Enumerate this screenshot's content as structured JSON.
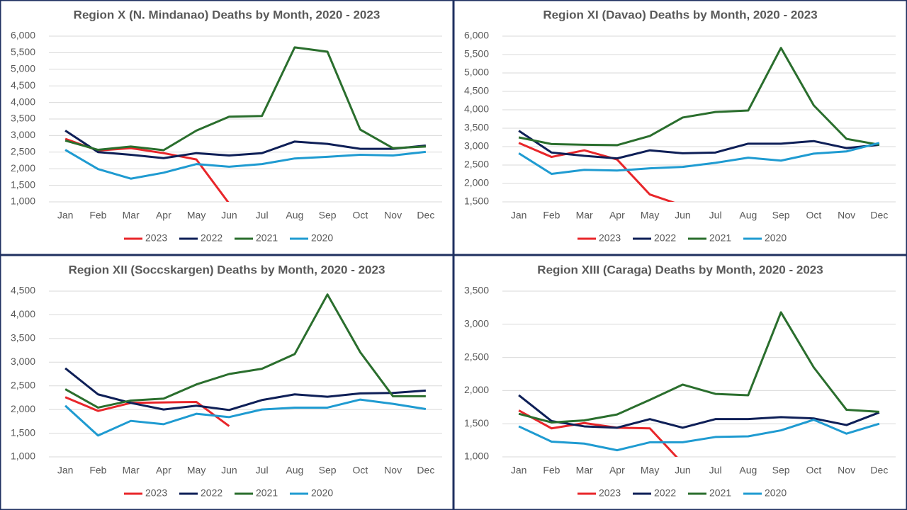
{
  "chart_data": [
    {
      "type": "line",
      "title": "Region X (N. Mindanao)  Deaths by Month, 2020 - 2023",
      "categories": [
        "Jan",
        "Feb",
        "Mar",
        "Apr",
        "May",
        "Jun",
        "Jul",
        "Aug",
        "Sep",
        "Oct",
        "Nov",
        "Dec"
      ],
      "series": [
        {
          "name": "2023",
          "color": "#e8262a",
          "values": [
            2900,
            2550,
            2620,
            2470,
            2280,
            950,
            null,
            null,
            null,
            null,
            null,
            null
          ]
        },
        {
          "name": "2022",
          "color": "#0e1f57",
          "values": [
            3150,
            2500,
            2420,
            2320,
            2470,
            2400,
            2470,
            2820,
            2750,
            2600,
            2600,
            2700
          ]
        },
        {
          "name": "2021",
          "color": "#2a6e2d",
          "values": [
            2850,
            2570,
            2670,
            2560,
            3150,
            3570,
            3590,
            5660,
            5530,
            3180,
            2620,
            2670
          ]
        },
        {
          "name": "2020",
          "color": "#1f9bd1",
          "values": [
            2570,
            1990,
            1700,
            1880,
            2140,
            2060,
            2140,
            2310,
            2360,
            2420,
            2400,
            2510
          ]
        }
      ],
      "ylim": [
        1000,
        6000
      ],
      "yticks": [
        {
          "value": 1000,
          "label": "1,000"
        },
        {
          "value": 1500,
          "label": "1,500"
        },
        {
          "value": 2000,
          "label": "2,000"
        },
        {
          "value": 2500,
          "label": "2,500"
        },
        {
          "value": 3000,
          "label": "3,000"
        },
        {
          "value": 3500,
          "label": "3,500"
        },
        {
          "value": 4000,
          "label": "4,000"
        },
        {
          "value": 4500,
          "label": "4,500"
        },
        {
          "value": 5000,
          "label": "5,000"
        },
        {
          "value": 5500,
          "label": "5,500"
        },
        {
          "value": 6000,
          "label": "6,000"
        }
      ],
      "grid": true
    },
    {
      "type": "line",
      "title": "Region XI (Davao) Deaths by Month, 2020 - 2023",
      "categories": [
        "Jan",
        "Feb",
        "Mar",
        "Apr",
        "May",
        "Jun",
        "Jul",
        "Aug",
        "Sep",
        "Oct",
        "Nov",
        "Dec"
      ],
      "series": [
        {
          "name": "2023",
          "color": "#e8262a",
          "values": [
            3100,
            2720,
            2900,
            2650,
            1700,
            1400,
            null,
            null,
            null,
            null,
            null,
            null
          ]
        },
        {
          "name": "2022",
          "color": "#0e1f57",
          "values": [
            3430,
            2840,
            2750,
            2680,
            2900,
            2820,
            2840,
            3080,
            3080,
            3150,
            2960,
            3050
          ]
        },
        {
          "name": "2021",
          "color": "#2a6e2d",
          "values": [
            3250,
            3070,
            3050,
            3040,
            3290,
            3790,
            3940,
            3980,
            5680,
            4120,
            3210,
            3050
          ]
        },
        {
          "name": "2020",
          "color": "#1f9bd1",
          "values": [
            2820,
            2260,
            2370,
            2350,
            2410,
            2450,
            2560,
            2700,
            2620,
            2810,
            2870,
            3100
          ]
        }
      ],
      "ylim": [
        1500,
        6000
      ],
      "yticks": [
        {
          "value": 1500,
          "label": "1,500"
        },
        {
          "value": 2000,
          "label": "2,000"
        },
        {
          "value": 2500,
          "label": "2,500"
        },
        {
          "value": 3000,
          "label": "3,000"
        },
        {
          "value": 3500,
          "label": "3,500"
        },
        {
          "value": 4000,
          "label": "4,000"
        },
        {
          "value": 4500,
          "label": "4,500"
        },
        {
          "value": 5000,
          "label": "5,000"
        },
        {
          "value": 5500,
          "label": "5,500"
        },
        {
          "value": 6000,
          "label": "6,000"
        }
      ],
      "grid": true
    },
    {
      "type": "line",
      "title": "Region XII (Soccskargen) Deaths by Month, 2020 - 2023",
      "categories": [
        "Jan",
        "Feb",
        "Mar",
        "Apr",
        "May",
        "Jun",
        "Jul",
        "Aug",
        "Sep",
        "Oct",
        "Nov",
        "Dec"
      ],
      "series": [
        {
          "name": "2023",
          "color": "#e8262a",
          "values": [
            2260,
            1970,
            2140,
            2150,
            2160,
            1650,
            null,
            null,
            null,
            null,
            null,
            null
          ]
        },
        {
          "name": "2022",
          "color": "#0e1f57",
          "values": [
            2870,
            2320,
            2140,
            2000,
            2080,
            1990,
            2200,
            2320,
            2270,
            2340,
            2350,
            2400
          ]
        },
        {
          "name": "2021",
          "color": "#2a6e2d",
          "values": [
            2430,
            2040,
            2190,
            2230,
            2530,
            2750,
            2860,
            3170,
            4430,
            3210,
            2280,
            2280
          ]
        },
        {
          "name": "2020",
          "color": "#1f9bd1",
          "values": [
            2080,
            1450,
            1760,
            1690,
            1910,
            1840,
            2000,
            2040,
            2040,
            2210,
            2120,
            2010
          ]
        }
      ],
      "ylim": [
        1000,
        4500
      ],
      "yticks": [
        {
          "value": 1000,
          "label": "1,000"
        },
        {
          "value": 1500,
          "label": "1,500"
        },
        {
          "value": 2000,
          "label": "2,000"
        },
        {
          "value": 2500,
          "label": "2,500"
        },
        {
          "value": 3000,
          "label": "3,000"
        },
        {
          "value": 3500,
          "label": "3,500"
        },
        {
          "value": 4000,
          "label": "4,000"
        },
        {
          "value": 4500,
          "label": "4,500"
        }
      ],
      "grid": true
    },
    {
      "type": "line",
      "title": "Region XIII (Caraga)  Deaths by Month, 2020 - 2023",
      "categories": [
        "Jan",
        "Feb",
        "Mar",
        "Apr",
        "May",
        "Jun",
        "Jul",
        "Aug",
        "Sep",
        "Oct",
        "Nov",
        "Dec"
      ],
      "series": [
        {
          "name": "2023",
          "color": "#e8262a",
          "values": [
            1700,
            1430,
            1510,
            1440,
            1430,
            900,
            null,
            null,
            null,
            null,
            null,
            null
          ]
        },
        {
          "name": "2022",
          "color": "#0e1f57",
          "values": [
            1930,
            1540,
            1460,
            1440,
            1570,
            1440,
            1570,
            1570,
            1600,
            1580,
            1480,
            1670
          ]
        },
        {
          "name": "2021",
          "color": "#2a6e2d",
          "values": [
            1650,
            1520,
            1550,
            1640,
            1860,
            2090,
            1950,
            1930,
            3180,
            2350,
            1710,
            1680
          ]
        },
        {
          "name": "2020",
          "color": "#1f9bd1",
          "values": [
            1460,
            1230,
            1200,
            1100,
            1220,
            1220,
            1300,
            1310,
            1400,
            1560,
            1350,
            1500
          ]
        }
      ],
      "ylim": [
        1000,
        3500
      ],
      "yticks": [
        {
          "value": 1000,
          "label": "1,000"
        },
        {
          "value": 1500,
          "label": "1,500"
        },
        {
          "value": 2000,
          "label": "2,000"
        },
        {
          "value": 2500,
          "label": "2,500"
        },
        {
          "value": 3000,
          "label": "3,000"
        },
        {
          "value": 3500,
          "label": "3,500"
        }
      ],
      "grid": true
    }
  ]
}
